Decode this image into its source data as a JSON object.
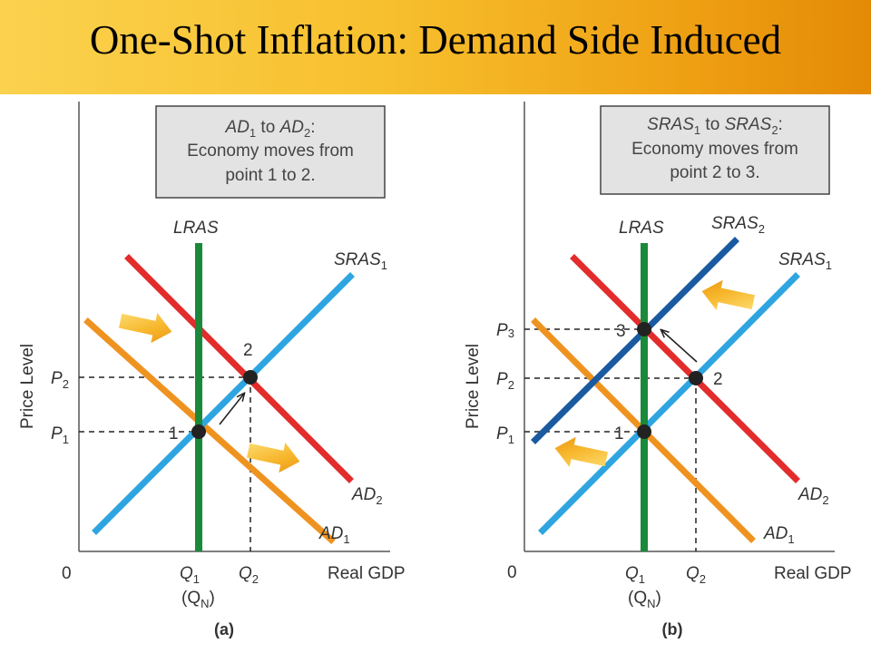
{
  "title": "One-Shot Inflation: Demand Side Induced",
  "colors": {
    "lras": "#1a8a3a",
    "sras1": "#2ea5e0",
    "sras2": "#1a5aa0",
    "ad1": "#ef9320",
    "ad2": "#e32c2c",
    "arrow_fill": "#f5b020",
    "box_bg": "#e3e3e3"
  },
  "panel_a": {
    "caption": "(a)",
    "box": {
      "line1_pre": "AD",
      "line1_sub1": "1",
      "line1_mid": " to ",
      "line1_ad": "AD",
      "line1_sub2": "2",
      "line1_end": ":",
      "line2": "Economy moves from",
      "line3": "point 1 to 2."
    },
    "origin": "0",
    "y_axis": "Price Level",
    "x_axis": "Real GDP",
    "curves": {
      "lras": "LRAS",
      "sras1": "SRAS",
      "sras1_sub": "1",
      "ad1": "AD",
      "ad1_sub": "1",
      "ad2": "AD",
      "ad2_sub": "2"
    },
    "prices": {
      "p1": "P",
      "p1_sub": "1",
      "p2": "P",
      "p2_sub": "2"
    },
    "quantities": {
      "q1": "Q",
      "q1_sub": "1",
      "qn_open": "(Q",
      "qn_sub": "N",
      "qn_close": ")",
      "q2": "Q",
      "q2_sub": "2"
    },
    "points": {
      "one": "1",
      "two": "2"
    }
  },
  "panel_b": {
    "caption": "(b)",
    "box": {
      "line1_pre": "SRAS",
      "line1_sub1": "1",
      "line1_mid": " to ",
      "line1_ad": "SRAS",
      "line1_sub2": "2",
      "line1_end": ":",
      "line2": "Economy moves from",
      "line3": "point 2 to 3."
    },
    "origin": "0",
    "y_axis": "Price Level",
    "x_axis": "Real GDP",
    "curves": {
      "lras": "LRAS",
      "sras1": "SRAS",
      "sras1_sub": "1",
      "sras2": "SRAS",
      "sras2_sub": "2",
      "ad1": "AD",
      "ad1_sub": "1",
      "ad2": "AD",
      "ad2_sub": "2"
    },
    "prices": {
      "p1": "P",
      "p1_sub": "1",
      "p2": "P",
      "p2_sub": "2",
      "p3": "P",
      "p3_sub": "3"
    },
    "quantities": {
      "q1": "Q",
      "q1_sub": "1",
      "qn_open": "(Q",
      "qn_sub": "N",
      "qn_close": ")",
      "q2": "Q",
      "q2_sub": "2"
    },
    "points": {
      "one": "1",
      "two": "2",
      "three": "3"
    }
  }
}
